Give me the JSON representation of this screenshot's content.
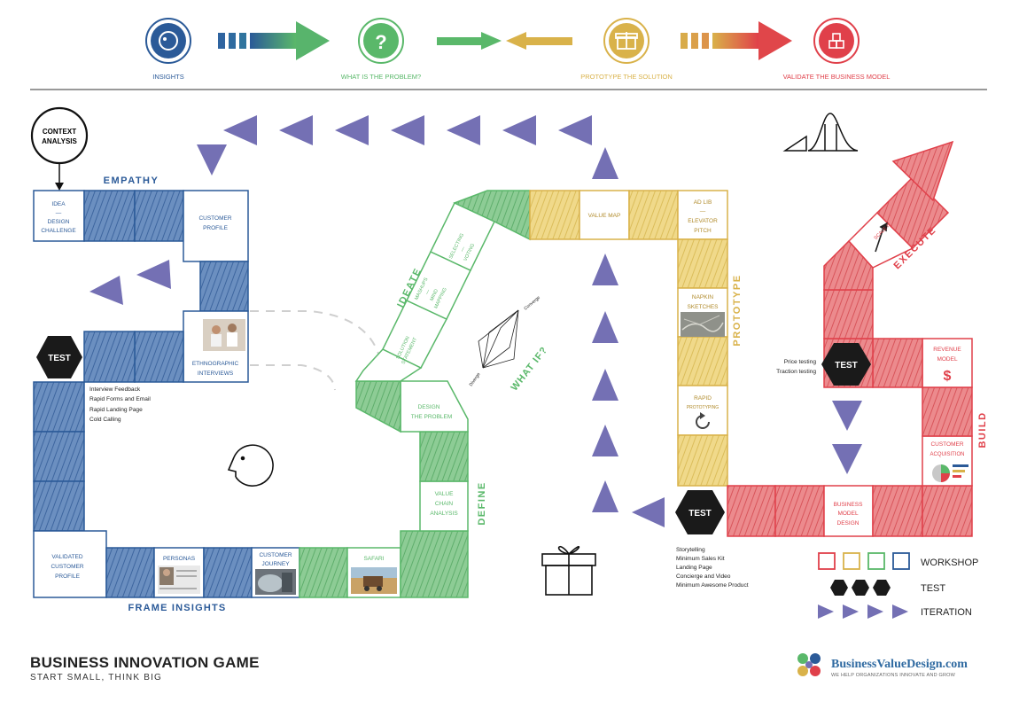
{
  "phases": [
    {
      "label": "INSIGHTS",
      "color": "#2b5a98"
    },
    {
      "label": "WHAT IS THE PROBLEM?",
      "color": "#5ab86a"
    },
    {
      "label": "PROTOTYPE THE SOLUTION",
      "color": "#d9b24a"
    },
    {
      "label": "VALIDATE THE BUSINESS MODEL",
      "color": "#e0404a"
    }
  ],
  "context": {
    "line1": "CONTEXT",
    "line2": "ANALYSIS"
  },
  "empathy": {
    "heading": "EMPATHY",
    "idea": [
      "IDEA",
      "—",
      "DESIGN",
      "CHALLENGE"
    ],
    "customer_profile": [
      "CUSTOMER",
      "PROFILE"
    ],
    "ethnographic": [
      "ETHNOGRAPHIC",
      "INTERVIEWS"
    ]
  },
  "test_left": {
    "label": "TEST",
    "items": [
      "Interview Feedback",
      "Rapid Forms and Email",
      "Rapid Landing Page",
      "Cold Calling"
    ]
  },
  "frame": {
    "heading": "FRAME INSIGHTS",
    "validated": [
      "VALIDATED",
      "CUSTOMER",
      "PROFILE"
    ],
    "personas": "PERSONAS",
    "journey": [
      "CUSTOMER",
      "JOURNEY"
    ],
    "safari": "SAFARI"
  },
  "define": {
    "heading": "DEFINE",
    "value_chain": [
      "VALUE",
      "CHAIN",
      "ANALYSIS"
    ],
    "design_problem": [
      "DESIGN",
      "THE PROBLEM"
    ]
  },
  "ideate": {
    "heading": "IDEATE",
    "what_if": "WHAT IF?",
    "solution": [
      "SOLUTION",
      "STATEMENT"
    ],
    "mashups": [
      "MASHUPS",
      "—",
      "MIND",
      "MAPPING"
    ],
    "selecting": [
      "SELECTING",
      "—",
      "VOTING"
    ],
    "converge": "Converge",
    "diverge": "Diverge"
  },
  "prototype": {
    "heading": "PROTOTYPE",
    "value_map": "VALUE MAP",
    "adlib": [
      "AD LIB",
      "—",
      "ELEVATOR",
      "PITCH"
    ],
    "napkin": [
      "NAPKIN",
      "SKETCHES"
    ],
    "rapid": [
      "RAPID",
      "PROTOTYPING"
    ]
  },
  "test_mid": {
    "label": "TEST",
    "items": [
      "Storytelling",
      "Minimum Sales Kit",
      "Landing Page",
      "Concierge and Video",
      "Minimum Awesome Product"
    ]
  },
  "build": {
    "heading": "BUILD",
    "bmd": [
      "BUSINESS",
      "MODEL",
      "DESIGN"
    ],
    "acquisition": [
      "CUSTOMER",
      "ACQUISITION"
    ],
    "revenue": [
      "REVENUE",
      "MODEL"
    ],
    "revenue_symbol": "$"
  },
  "test_right": {
    "label": "TEST",
    "items": [
      "Price testing",
      "Traction testing"
    ]
  },
  "execute": {
    "heading": "EXECUTE",
    "scale": "SCALE IT"
  },
  "legend": {
    "workshop": "WORKSHOP",
    "test": "TEST",
    "iteration": "ITERATION"
  },
  "footer": {
    "title": "BUSINESS INNOVATION GAME",
    "subtitle": "START SMALL, THINK BIG",
    "brand": "BusinessValueDesign.com",
    "tagline": "WE HELP ORGANIZATIONS INNOVATE AND GROW"
  },
  "colors": {
    "blue": "#2b5a98",
    "green": "#5ab86a",
    "yellow": "#d9b24a",
    "red": "#e0404a",
    "arrow": "#7470b4"
  }
}
